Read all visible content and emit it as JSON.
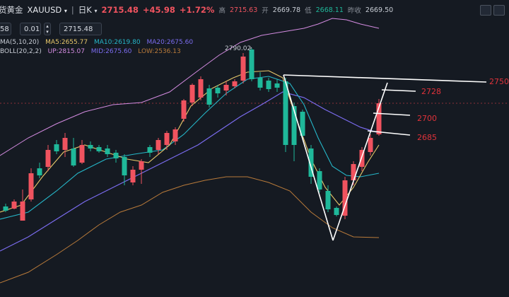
{
  "header": {
    "instrument": "货黄金",
    "symbol": "XAUUSD",
    "timeframe": "日K",
    "price": "2715.48",
    "change": "+45.98",
    "change_pct": "+1.72%",
    "high_label": "高",
    "high": "2715.63",
    "open_label": "开",
    "open": "2669.78",
    "low_label": "低",
    "low": "2668.11",
    "prev_label": "昨收",
    "prev": "2669.50"
  },
  "order": {
    "field_a": "58",
    "lot": "0.01",
    "price": "2715.48"
  },
  "indicators": {
    "ma_name": "MA(5,10,20)",
    "ma5": "MA5:2655.77",
    "ma10": "MA10:2619.80",
    "ma20": "MA20:2675.60",
    "boll_name": "BOLL(20,2,2)",
    "up": "UP:2815.07",
    "mid": "MID:2675.60",
    "low": "LOW:2536.13"
  },
  "annotations": {
    "peak": "2790.02",
    "l2750": "2750",
    "l2728": "2728",
    "l2700": "2700",
    "l2685": "2685"
  },
  "colors": {
    "up": "#f0535f",
    "down": "#1fb89a",
    "ma5": "#e8c86a",
    "ma10": "#26b6c8",
    "ma20": "#7b6cf0",
    "boll": "#d38be0",
    "boll_low": "#b87a3a",
    "target": "#e0323a"
  },
  "icons": [
    "dropdown-icon",
    "chart-type-icon",
    "settings-icon",
    "camera-icon",
    "expand-icon",
    "stepper-icon"
  ]
}
